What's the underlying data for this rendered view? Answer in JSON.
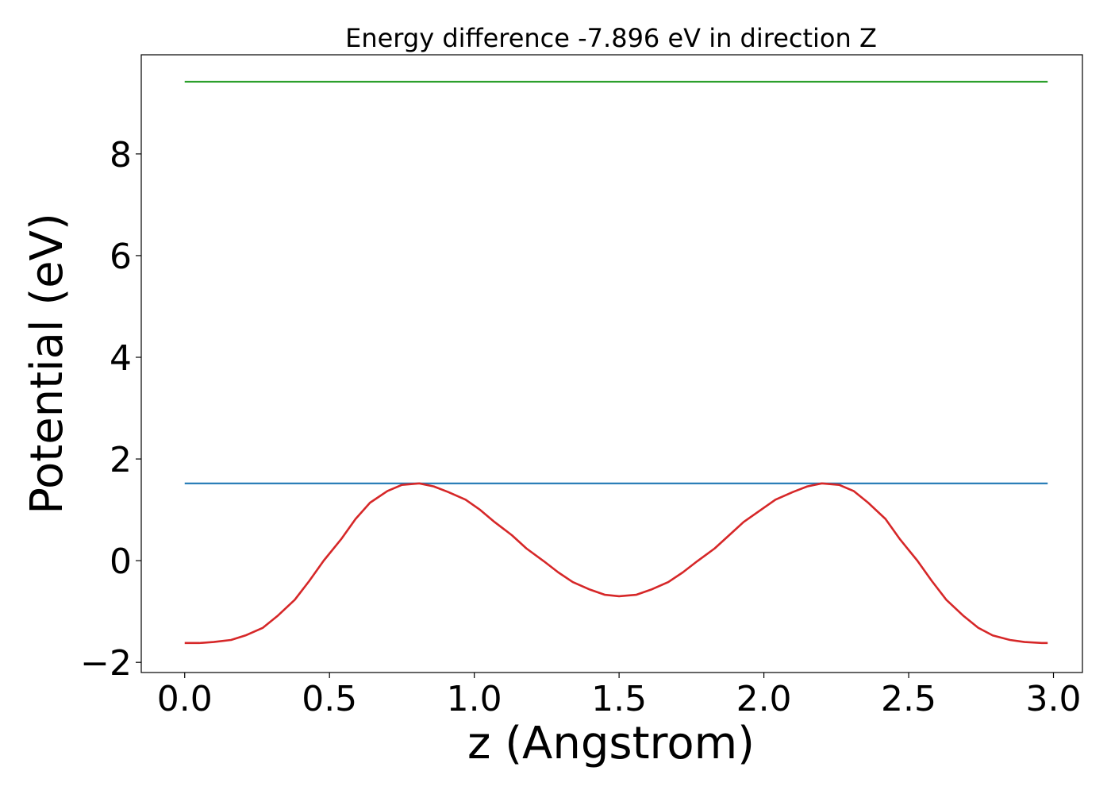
{
  "chart_data": {
    "type": "line",
    "title": "Energy difference -7.896 eV in direction Z",
    "xlabel": "z (Angstrom)",
    "ylabel": "Potential (eV)",
    "xlim": [
      -0.15,
      3.1
    ],
    "ylim": [
      -2.2,
      9.95
    ],
    "xticks": [
      0.0,
      0.5,
      1.0,
      1.5,
      2.0,
      2.5,
      3.0
    ],
    "xtick_labels": [
      "0.0",
      "0.5",
      "1.0",
      "1.5",
      "2.0",
      "2.5",
      "3.0"
    ],
    "yticks": [
      -2,
      0,
      2,
      4,
      6,
      8
    ],
    "ytick_labels": [
      "−2",
      "0",
      "2",
      "4",
      "6",
      "8"
    ],
    "grid": false,
    "legend": "none",
    "series": [
      {
        "color": "#2ca02c",
        "x": [
          0.0,
          2.98
        ],
        "y": [
          9.42,
          9.42
        ]
      },
      {
        "color": "#1f77b4",
        "x": [
          0.0,
          2.98
        ],
        "y": [
          1.52,
          1.52
        ]
      },
      {
        "color": "#d62728",
        "x": [
          0.0,
          0.05,
          0.1,
          0.16,
          0.21,
          0.27,
          0.32,
          0.38,
          0.43,
          0.48,
          0.54,
          0.59,
          0.64,
          0.7,
          0.75,
          0.81,
          0.86,
          0.91,
          0.97,
          1.02,
          1.07,
          1.13,
          1.18,
          1.24,
          1.29,
          1.34,
          1.4,
          1.45,
          1.5,
          1.56,
          1.61,
          1.67,
          1.72,
          1.77,
          1.83,
          1.88,
          1.93,
          1.99,
          2.04,
          2.1,
          2.15,
          2.2,
          2.26,
          2.31,
          2.36,
          2.42,
          2.47,
          2.53,
          2.58,
          2.63,
          2.69,
          2.74,
          2.79,
          2.85,
          2.9,
          2.96,
          2.98
        ],
        "y": [
          -1.62,
          -1.62,
          -1.6,
          -1.56,
          -1.47,
          -1.32,
          -1.09,
          -0.77,
          -0.4,
          0.0,
          0.42,
          0.82,
          1.14,
          1.37,
          1.49,
          1.52,
          1.46,
          1.35,
          1.2,
          1.0,
          0.76,
          0.5,
          0.24,
          -0.01,
          -0.23,
          -0.42,
          -0.57,
          -0.67,
          -0.7,
          -0.67,
          -0.57,
          -0.42,
          -0.23,
          -0.01,
          0.24,
          0.5,
          0.76,
          1.0,
          1.2,
          1.35,
          1.46,
          1.52,
          1.49,
          1.37,
          1.14,
          0.82,
          0.42,
          0.0,
          -0.4,
          -0.77,
          -1.09,
          -1.32,
          -1.47,
          -1.56,
          -1.6,
          -1.62,
          -1.62
        ]
      }
    ]
  }
}
